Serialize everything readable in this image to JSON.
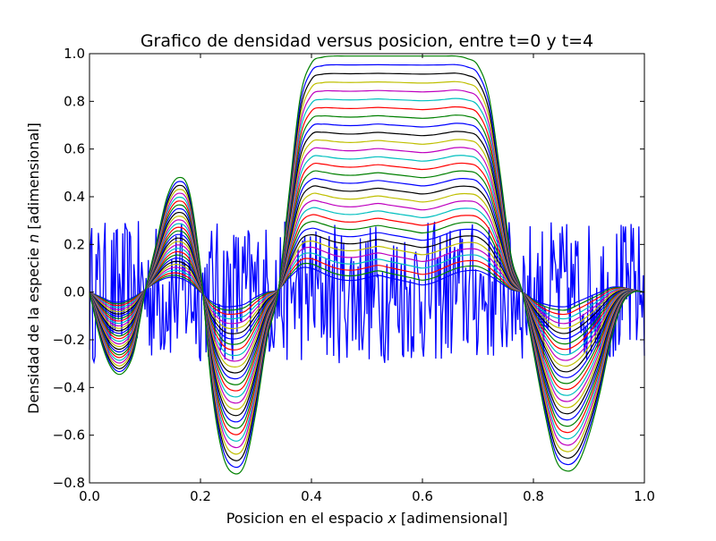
{
  "chart_data": {
    "type": "line",
    "title": "Grafico de densidad versus posicion, entre t=0 y t=4",
    "xlabel_prefix": "Posicion en el espacio ",
    "xlabel_var": "x",
    "xlabel_suffix": " [adimensional]",
    "ylabel_prefix": "Densidad de la especie ",
    "ylabel_var": "n",
    "ylabel_suffix": " [adimensional]",
    "xlim": [
      0.0,
      1.0
    ],
    "ylim": [
      -0.8,
      1.0
    ],
    "xticks": [
      0.0,
      0.2,
      0.4,
      0.6,
      0.8,
      1.0
    ],
    "xtick_labels": [
      "0.0",
      "0.2",
      "0.4",
      "0.6",
      "0.8",
      "1.0"
    ],
    "yticks": [
      -0.8,
      -0.6,
      -0.4,
      -0.2,
      0.0,
      0.2,
      0.4,
      0.6,
      0.8,
      1.0
    ],
    "ytick_labels": [
      "−0.8",
      "−0.6",
      "−0.4",
      "−0.2",
      "0.0",
      "0.2",
      "0.4",
      "0.6",
      "0.8",
      "1.0"
    ],
    "grid": false,
    "legend": "none",
    "x": [
      0.0,
      0.02,
      0.04,
      0.06,
      0.08,
      0.1,
      0.12,
      0.14,
      0.16,
      0.18,
      0.2,
      0.22,
      0.24,
      0.26,
      0.28,
      0.3,
      0.32,
      0.34,
      0.36,
      0.38,
      0.4,
      0.42,
      0.44,
      0.46,
      0.48,
      0.5,
      0.52,
      0.54,
      0.56,
      0.58,
      0.6,
      0.62,
      0.64,
      0.66,
      0.68,
      0.7,
      0.72,
      0.74,
      0.76,
      0.78,
      0.8,
      0.82,
      0.84,
      0.86,
      0.88,
      0.9,
      0.92,
      0.94,
      0.96,
      0.98,
      1.0
    ],
    "final_profile_values": [
      0.0,
      -0.2,
      -0.32,
      -0.34,
      -0.25,
      0.0,
      0.2,
      0.4,
      0.48,
      0.42,
      0.1,
      -0.4,
      -0.68,
      -0.76,
      -0.72,
      -0.5,
      -0.2,
      0.0,
      0.42,
      0.82,
      0.96,
      0.985,
      0.99,
      0.99,
      0.99,
      0.99,
      0.99,
      0.99,
      0.99,
      0.99,
      0.99,
      0.99,
      0.99,
      0.99,
      0.98,
      0.95,
      0.82,
      0.5,
      0.15,
      0.0,
      -0.25,
      -0.5,
      -0.7,
      -0.75,
      -0.72,
      -0.6,
      -0.42,
      -0.2,
      -0.05,
      0.0,
      0.0
    ],
    "final_small_amplitude_values": [
      0.0,
      -0.02,
      -0.04,
      -0.04,
      -0.02,
      0.01,
      0.04,
      0.06,
      0.06,
      0.04,
      0.0,
      -0.04,
      -0.06,
      -0.06,
      -0.05,
      -0.02,
      0.0,
      0.01,
      0.06,
      0.1,
      0.1,
      0.08,
      0.06,
      0.05,
      0.05,
      0.06,
      0.07,
      0.06,
      0.05,
      0.04,
      0.03,
      0.04,
      0.06,
      0.08,
      0.09,
      0.09,
      0.07,
      0.04,
      0.01,
      0.0,
      -0.03,
      -0.05,
      -0.06,
      -0.06,
      -0.04,
      -0.02,
      0.0,
      0.02,
      0.02,
      0.01,
      0.0
    ],
    "series_count": 30,
    "series_colors": [
      "#0000ff",
      "#008000",
      "#ff0000",
      "#00bfbf",
      "#bf00bf",
      "#bfbf00",
      "#000000"
    ],
    "noise_series": {
      "name": "t=0",
      "color": "#0000ff",
      "range": [
        -0.3,
        0.3
      ]
    }
  }
}
